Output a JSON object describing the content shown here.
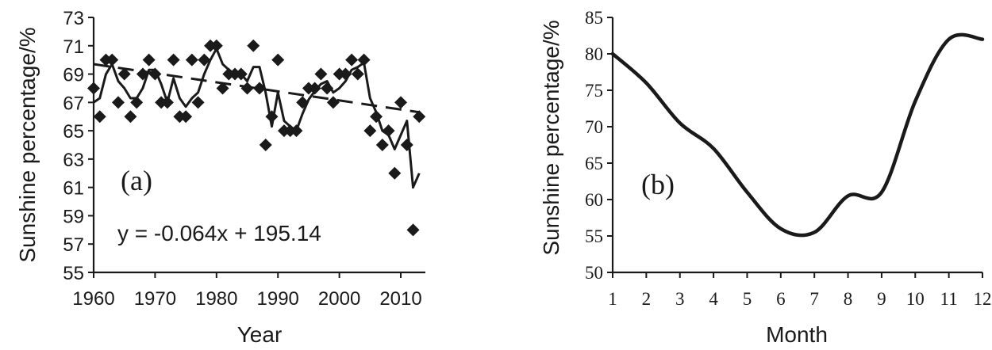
{
  "chart_data": [
    {
      "type": "scatter",
      "panel_label": "(a)",
      "xlabel": "Year",
      "ylabel": "Sunshine percentage/%",
      "xlim": [
        1960,
        2014
      ],
      "ylim": [
        55,
        73
      ],
      "x_ticks": [
        "1960",
        "1970",
        "1980",
        "1990",
        "2000",
        "2010"
      ],
      "y_ticks": [
        "55",
        "57",
        "59",
        "61",
        "63",
        "65",
        "67",
        "69",
        "71",
        "73"
      ],
      "equation": "y = -0.064x + 195.14",
      "trend": {
        "slope": -0.064,
        "intercept": 195.14
      },
      "series": [
        {
          "kind": "scatter",
          "x": [
            1960,
            1961,
            1962,
            1963,
            1964,
            1965,
            1966,
            1967,
            1968,
            1969,
            1970,
            1971,
            1972,
            1973,
            1974,
            1975,
            1976,
            1977,
            1978,
            1979,
            1980,
            1981,
            1982,
            1983,
            1984,
            1985,
            1986,
            1987,
            1988,
            1989,
            1990,
            1991,
            1992,
            1993,
            1994,
            1995,
            1996,
            1997,
            1998,
            1999,
            2000,
            2001,
            2002,
            2003,
            2004,
            2005,
            2006,
            2007,
            2008,
            2009,
            2010,
            2011,
            2012,
            2013
          ],
          "y": [
            68,
            66,
            70,
            70,
            67,
            69,
            66,
            67,
            69,
            70,
            69,
            67,
            67,
            70,
            66,
            66,
            70,
            67,
            70,
            71,
            71,
            68,
            69,
            69,
            69,
            68,
            71,
            68,
            64,
            66,
            70,
            65,
            65,
            65,
            67,
            68,
            68,
            69,
            68,
            67,
            69,
            69,
            70,
            69,
            70,
            65,
            66,
            64,
            65,
            62,
            67,
            64,
            58,
            66
          ]
        },
        {
          "kind": "line",
          "x": [
            1960,
            1961,
            1962,
            1963,
            1964,
            1965,
            1966,
            1967,
            1968,
            1969,
            1970,
            1971,
            1972,
            1973,
            1974,
            1975,
            1976,
            1977,
            1978,
            1979,
            1980,
            1981,
            1982,
            1983,
            1984,
            1985,
            1986,
            1987,
            1988,
            1989,
            1990,
            1991,
            1992,
            1993,
            1994,
            1995,
            1996,
            1997,
            1998,
            1999,
            2000,
            2001,
            2002,
            2003,
            2004,
            2005,
            2006,
            2007,
            2008,
            2009,
            2010,
            2011,
            2012,
            2013
          ],
          "y": [
            67,
            67.3,
            69,
            69.7,
            68.5,
            68,
            67.3,
            67.3,
            68,
            69.3,
            69.3,
            68.3,
            67,
            68.7,
            67.3,
            66.7,
            67.3,
            67.7,
            69,
            70,
            70.8,
            69.7,
            69.3,
            69,
            69,
            68.5,
            69.5,
            69.5,
            67.7,
            65.3,
            67.7,
            65.7,
            65.3,
            65,
            66.2,
            67.2,
            67.8,
            68.3,
            68.5,
            67.7,
            68,
            68.5,
            69.3,
            69.5,
            69.8,
            67.3,
            66.3,
            65,
            64.7,
            63.7,
            64.7,
            65.7,
            61,
            62
          ]
        }
      ]
    },
    {
      "type": "line",
      "panel_label": "(b)",
      "xlabel": "Month",
      "ylabel": "Sunshine percentage/%",
      "xlim": [
        1,
        12
      ],
      "ylim": [
        50,
        85
      ],
      "x_ticks": [
        "1",
        "2",
        "3",
        "4",
        "5",
        "6",
        "7",
        "8",
        "9",
        "10",
        "11",
        "12"
      ],
      "y_ticks": [
        "50",
        "55",
        "60",
        "65",
        "70",
        "75",
        "80",
        "85"
      ],
      "series": [
        {
          "x": [
            1,
            2,
            3,
            4,
            5,
            6,
            7,
            8,
            9,
            10,
            11,
            12
          ],
          "y": [
            80,
            76,
            70.5,
            67,
            61,
            56,
            55.5,
            60.5,
            61,
            73.5,
            82,
            82
          ]
        }
      ]
    }
  ]
}
